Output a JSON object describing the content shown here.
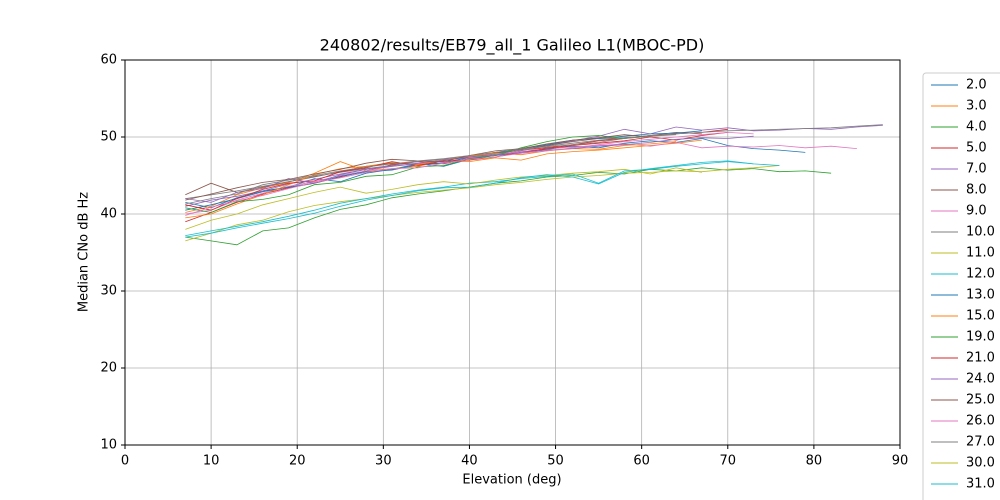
{
  "chart_data": {
    "type": "line",
    "title": "240802/results/EB79_all_1 Galileo L1(MBOC-PD)",
    "x_label": "Elevation (deg)",
    "y_label": "Median CNo dB Hz",
    "xlim": [
      0,
      90
    ],
    "xticks": [
      0,
      10,
      20,
      30,
      40,
      50,
      60,
      70,
      80,
      90
    ],
    "ylim": [
      10,
      60
    ],
    "yticks": [
      10,
      20,
      30,
      40,
      50,
      60
    ],
    "grid": true,
    "legend": "outside-right",
    "x": [
      7,
      10,
      13,
      16,
      19,
      22,
      25,
      28,
      31,
      34,
      37,
      40,
      43,
      46,
      49,
      52,
      55,
      58,
      61,
      64,
      67,
      70,
      73,
      76,
      79,
      82,
      85,
      88
    ],
    "series": [
      {
        "name": "2.0",
        "color": "#1f77b4",
        "values": [
          41.5,
          40.8,
          42.1,
          43.0,
          43.5,
          44.6,
          44.2,
          45.3,
          45.8,
          46.5,
          46.2,
          47.1,
          47.6,
          47.9,
          48.4,
          48.8,
          48.6,
          49.2,
          49.5,
          49.3,
          49.8,
          48.9,
          48.5,
          48.3,
          48.0,
          null,
          null,
          null
        ]
      },
      {
        "name": "3.0",
        "color": "#ff7f0e",
        "values": [
          40.2,
          41.0,
          42.5,
          43.4,
          44.1,
          45.3,
          46.8,
          45.6,
          45.9,
          46.2,
          46.9,
          46.8,
          47.3,
          47.0,
          47.8,
          48.1,
          48.3,
          48.6,
          48.9,
          49.2,
          49.6,
          null,
          null,
          null,
          null,
          null,
          null,
          null
        ]
      },
      {
        "name": "4.0",
        "color": "#2ca02c",
        "values": [
          37.0,
          36.5,
          36.0,
          37.8,
          38.2,
          39.5,
          40.6,
          41.2,
          42.1,
          42.6,
          43.0,
          43.5,
          44.0,
          44.3,
          44.8,
          45.0,
          45.4,
          45.2,
          45.8,
          45.6,
          46.0,
          45.7,
          45.9,
          45.5,
          45.6,
          45.3,
          null,
          null
        ]
      },
      {
        "name": "5.0",
        "color": "#d62728",
        "values": [
          39.0,
          40.2,
          41.5,
          42.6,
          43.4,
          44.0,
          44.8,
          45.6,
          46.4,
          46.8,
          46.5,
          47.2,
          47.8,
          48.3,
          48.6,
          49.0,
          49.5,
          49.8,
          50.2,
          50.4,
          50.6,
          51.0,
          null,
          null,
          null,
          null,
          null,
          null
        ]
      },
      {
        "name": "7.0",
        "color": "#9467bd",
        "values": [
          41.0,
          41.8,
          42.3,
          43.0,
          43.9,
          44.5,
          45.2,
          45.8,
          46.3,
          46.9,
          46.7,
          47.3,
          47.6,
          48.2,
          48.9,
          49.5,
          50.1,
          51.0,
          50.4,
          51.3,
          50.9,
          51.2,
          50.8,
          50.9,
          51.1,
          51.0,
          51.3,
          51.5
        ]
      },
      {
        "name": "8.0",
        "color": "#8c564b",
        "values": [
          42.5,
          44.0,
          42.8,
          43.5,
          44.2,
          44.8,
          45.5,
          46.2,
          46.6,
          46.5,
          47.0,
          47.5,
          48.0,
          48.4,
          48.9,
          49.4,
          49.8,
          49.9,
          50.2,
          50.6,
          50.4,
          null,
          null,
          null,
          null,
          null,
          null,
          null
        ]
      },
      {
        "name": "9.0",
        "color": "#e377c2",
        "values": [
          40.0,
          40.5,
          41.8,
          42.7,
          43.6,
          44.2,
          45.0,
          45.6,
          46.2,
          46.5,
          47.0,
          47.3,
          47.8,
          48.1,
          48.5,
          48.7,
          48.9,
          49.1,
          48.8,
          49.3,
          48.6,
          48.8,
          48.7,
          48.9,
          48.6,
          48.8,
          48.5,
          null
        ]
      },
      {
        "name": "10.0",
        "color": "#7f7f7f",
        "values": [
          42.0,
          42.5,
          43.0,
          43.6,
          44.2,
          44.9,
          45.4,
          45.9,
          46.3,
          46.8,
          47.1,
          47.5,
          47.9,
          48.3,
          48.8,
          49.2,
          49.6,
          49.9,
          50.2,
          50.4,
          50.6,
          50.8,
          50.9,
          51.0,
          51.1,
          51.2,
          51.4,
          51.6
        ]
      },
      {
        "name": "11.0",
        "color": "#bcbd22",
        "values": [
          36.5,
          37.5,
          38.6,
          39.2,
          40.3,
          41.1,
          41.6,
          42.0,
          42.4,
          42.8,
          43.1,
          43.4,
          43.8,
          44.1,
          44.5,
          44.8,
          45.0,
          45.3,
          45.4,
          45.6,
          45.5,
          45.8,
          46.0,
          46.3,
          null,
          null,
          null,
          null
        ]
      },
      {
        "name": "12.0",
        "color": "#17becf",
        "values": [
          37.2,
          37.8,
          38.4,
          39.0,
          39.7,
          40.5,
          41.4,
          42.0,
          42.6,
          43.1,
          43.5,
          44.0,
          44.2,
          44.6,
          44.9,
          45.2,
          44.0,
          45.6,
          45.8,
          46.2,
          46.5,
          46.8,
          46.5,
          46.3,
          null,
          null,
          null,
          null
        ]
      },
      {
        "name": "13.0",
        "color": "#1f77b4",
        "values": [
          40.5,
          41.2,
          42.0,
          42.9,
          43.5,
          44.0,
          44.9,
          45.5,
          45.7,
          46.4,
          46.6,
          47.4,
          47.9,
          48.5,
          49.0,
          49.6,
          49.8,
          50.1,
          50.4,
          50.5,
          50.8,
          null,
          null,
          null,
          null,
          null,
          null,
          null
        ]
      },
      {
        "name": "15.0",
        "color": "#ff7f0e",
        "values": [
          39.5,
          40.0,
          41.3,
          42.5,
          43.8,
          45.1,
          45.9,
          46.2,
          46.7,
          46.4,
          47.0,
          47.5,
          47.9,
          47.7,
          48.2,
          48.5,
          48.4,
          48.9,
          49.1,
          49.4,
          null,
          null,
          null,
          null,
          null,
          null,
          null,
          null
        ]
      },
      {
        "name": "19.0",
        "color": "#2ca02c",
        "values": [
          40.8,
          40.2,
          41.6,
          41.9,
          42.5,
          43.8,
          44.1,
          44.9,
          45.1,
          46.1,
          46.3,
          47.2,
          47.6,
          48.6,
          49.4,
          50.0,
          50.2,
          49.8,
          50.1,
          null,
          null,
          null,
          null,
          null,
          null,
          null,
          null,
          null
        ]
      },
      {
        "name": "21.0",
        "color": "#d62728",
        "values": [
          41.2,
          40.5,
          42.0,
          43.2,
          44.0,
          44.3,
          45.5,
          46.0,
          46.8,
          46.3,
          46.9,
          47.0,
          47.4,
          48.0,
          48.5,
          48.9,
          49.2,
          49.5,
          50.0,
          49.6,
          50.2,
          50.6,
          null,
          null,
          null,
          null,
          null,
          null
        ]
      },
      {
        "name": "24.0",
        "color": "#9467bd",
        "values": [
          42.0,
          41.5,
          42.8,
          43.3,
          44.6,
          44.0,
          45.1,
          45.8,
          46.2,
          46.6,
          47.0,
          47.4,
          47.7,
          48.0,
          48.3,
          48.5,
          48.8,
          49.0,
          49.3,
          49.7,
          49.9,
          49.8,
          50.1,
          null,
          null,
          null,
          null,
          null
        ]
      },
      {
        "name": "25.0",
        "color": "#8c564b",
        "values": [
          41.8,
          42.6,
          43.4,
          44.1,
          44.5,
          45.2,
          45.8,
          46.6,
          47.1,
          46.9,
          46.8,
          47.6,
          48.2,
          48.5,
          49.1,
          49.6,
          49.9,
          50.3,
          50.0,
          null,
          null,
          null,
          null,
          null,
          null,
          null,
          null,
          null
        ]
      },
      {
        "name": "26.0",
        "color": "#e377c2",
        "values": [
          39.8,
          40.9,
          41.7,
          42.4,
          43.3,
          44.1,
          44.7,
          45.4,
          45.9,
          46.0,
          46.6,
          47.1,
          47.4,
          47.9,
          48.2,
          48.6,
          49.0,
          49.4,
          49.7,
          50.0,
          50.3,
          50.6,
          50.4,
          null,
          null,
          null,
          null,
          null
        ]
      },
      {
        "name": "27.0",
        "color": "#7f7f7f",
        "values": [
          41.3,
          42.0,
          42.6,
          43.8,
          44.4,
          45.0,
          45.6,
          46.1,
          46.5,
          46.9,
          47.2,
          47.6,
          48.0,
          48.5,
          48.7,
          49.0,
          49.3,
          49.8,
          50.1,
          50.3,
          null,
          null,
          null,
          null,
          null,
          null,
          null,
          null
        ]
      },
      {
        "name": "30.0",
        "color": "#bcbd22",
        "values": [
          38.0,
          39.2,
          40.0,
          41.2,
          42.0,
          42.8,
          43.5,
          42.7,
          43.2,
          43.8,
          44.2,
          43.9,
          44.4,
          44.8,
          45.0,
          45.3,
          45.5,
          45.8,
          45.2,
          46.0,
          45.4,
          null,
          null,
          null,
          null,
          null,
          null,
          null
        ]
      },
      {
        "name": "31.0",
        "color": "#17becf",
        "values": [
          37.0,
          37.5,
          38.2,
          38.8,
          39.4,
          40.1,
          41.0,
          41.8,
          42.4,
          43.0,
          43.4,
          43.5,
          44.0,
          44.7,
          45.1,
          44.8,
          43.9,
          45.4,
          45.9,
          46.3,
          46.7,
          46.9,
          46.5,
          null,
          null,
          null,
          null,
          null
        ]
      }
    ]
  }
}
